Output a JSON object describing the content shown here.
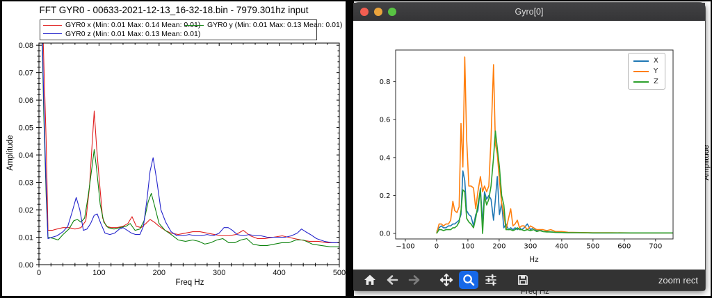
{
  "left_panel": {
    "title": "FFT GYR0 - 00633-2021-12-13_16-32-18.bin - 7979.301hz input"
  },
  "window": {
    "title": "Gyro[0]",
    "traffic_lights": {
      "close": "#f25e51",
      "minimize": "#eba43c",
      "zoom": "#58c343"
    },
    "toolbar": {
      "icons": [
        "home",
        "back",
        "forward",
        "pan",
        "zoom",
        "configure-subplots",
        "save"
      ],
      "active_tool": "zoom",
      "active_bg": "#1668e8",
      "status_text": "zoom rect"
    }
  },
  "background_window": {
    "ylabel_fragment": "Amplitude",
    "xlabel_fragment": "Freq Hz"
  },
  "chart_data": [
    {
      "type": "line",
      "title": "FFT GYR0 - 00633-2021-12-13_16-32-18.bin - 7979.301hz input",
      "xlabel": "Freq Hz",
      "ylabel": "Amplitude",
      "xlim": [
        0,
        500
      ],
      "ylim": [
        0,
        0.0808
      ],
      "xticks": [
        0,
        100,
        200,
        300,
        400,
        500
      ],
      "xticklabels": [
        "0",
        "100",
        "200",
        "300",
        "400",
        "500"
      ],
      "xminor_step": 20,
      "yticks": [
        0,
        0.01,
        0.02,
        0.03,
        0.04,
        0.05,
        0.06,
        0.07,
        0.08
      ],
      "yticklabels": [
        "0.00",
        "0.01",
        "0.02",
        "0.03",
        "0.04",
        "0.05",
        "0.06",
        "0.07",
        "0.08"
      ],
      "yminor_step": 0.002,
      "grid": false,
      "legend_position": "top spanning, two columns",
      "series": [
        {
          "name": "GYR0 x",
          "legend_label": "GYR0 x (Min: 0.01 Max: 0.14 Mean: 0.01)",
          "color": "#e01f1f",
          "x": [
            0,
            4,
            8,
            12,
            15,
            22,
            30,
            40,
            50,
            60,
            70,
            78,
            84,
            88,
            92,
            96,
            100,
            106,
            112,
            120,
            130,
            140,
            148,
            155,
            162,
            170,
            178,
            185,
            192,
            200,
            210,
            220,
            232,
            244,
            256,
            268,
            280,
            292,
            304,
            316,
            328,
            340,
            352,
            364,
            376,
            390,
            405,
            415,
            425,
            437,
            450,
            465,
            480,
            500
          ],
          "y": [
            0.14,
            0.105,
            0.075,
            0.045,
            0.0125,
            0.0125,
            0.013,
            0.0135,
            0.0135,
            0.013,
            0.0135,
            0.016,
            0.028,
            0.042,
            0.056,
            0.043,
            0.032,
            0.017,
            0.014,
            0.0135,
            0.0135,
            0.014,
            0.015,
            0.0175,
            0.014,
            0.0135,
            0.015,
            0.0165,
            0.0155,
            0.014,
            0.0125,
            0.0115,
            0.011,
            0.0115,
            0.012,
            0.012,
            0.0115,
            0.011,
            0.0105,
            0.0105,
            0.011,
            0.0125,
            0.0105,
            0.0095,
            0.0095,
            0.01,
            0.0105,
            0.01,
            0.0095,
            0.009,
            0.0085,
            0.0085,
            0.008,
            0.008
          ]
        },
        {
          "name": "GYR0 y",
          "legend_label": "GYR0 y (Min: 0.01 Max: 0.13 Mean: 0.01)",
          "color": "#0e830e",
          "x": [
            0,
            4,
            8,
            12,
            15,
            25,
            32,
            40,
            50,
            58,
            64,
            70,
            76,
            82,
            88,
            92,
            96,
            102,
            108,
            115,
            125,
            135,
            145,
            152,
            160,
            168,
            175,
            182,
            187,
            193,
            200,
            210,
            220,
            232,
            244,
            256,
            266,
            276,
            286,
            296,
            306,
            316,
            326,
            336,
            346,
            356,
            368,
            380,
            392,
            404,
            416,
            428,
            440,
            455,
            470,
            485,
            500
          ],
          "y": [
            0.13,
            0.095,
            0.055,
            0.025,
            0.01,
            0.0095,
            0.009,
            0.011,
            0.013,
            0.016,
            0.0165,
            0.0155,
            0.017,
            0.025,
            0.035,
            0.042,
            0.035,
            0.022,
            0.0155,
            0.0135,
            0.013,
            0.0135,
            0.014,
            0.015,
            0.0125,
            0.013,
            0.016,
            0.023,
            0.026,
            0.021,
            0.015,
            0.0125,
            0.011,
            0.009,
            0.0085,
            0.009,
            0.0085,
            0.0075,
            0.008,
            0.009,
            0.0095,
            0.008,
            0.008,
            0.009,
            0.0095,
            0.0075,
            0.007,
            0.007,
            0.0075,
            0.008,
            0.008,
            0.009,
            0.009,
            0.0075,
            0.007,
            0.0065,
            0.0065
          ]
        },
        {
          "name": "GYR0 z",
          "legend_label": "GYR0 z (Min: 0.01 Max: 0.13 Mean: 0.01)",
          "color": "#2525cc",
          "x": [
            0,
            4,
            8,
            12,
            15,
            22,
            30,
            40,
            48,
            55,
            62,
            68,
            74,
            80,
            86,
            92,
            97,
            103,
            110,
            118,
            126,
            134,
            140,
            147,
            154,
            161,
            168,
            174,
            180,
            185,
            190,
            196,
            203,
            211,
            220,
            230,
            240,
            250,
            260,
            270,
            280,
            290,
            300,
            308,
            315,
            322,
            330,
            340,
            350,
            360,
            370,
            380,
            390,
            400,
            410,
            420,
            430,
            437,
            444,
            452,
            462,
            475,
            488,
            500
          ],
          "y": [
            0.13,
            0.1,
            0.06,
            0.028,
            0.0095,
            0.01,
            0.0105,
            0.012,
            0.014,
            0.019,
            0.0245,
            0.02,
            0.0125,
            0.013,
            0.015,
            0.018,
            0.0185,
            0.015,
            0.0115,
            0.011,
            0.0115,
            0.013,
            0.0135,
            0.0125,
            0.0115,
            0.011,
            0.011,
            0.014,
            0.024,
            0.034,
            0.039,
            0.031,
            0.02,
            0.0155,
            0.012,
            0.0105,
            0.0105,
            0.011,
            0.0105,
            0.0105,
            0.011,
            0.0105,
            0.0115,
            0.0135,
            0.0135,
            0.0125,
            0.011,
            0.0105,
            0.011,
            0.0105,
            0.0105,
            0.01,
            0.01,
            0.01,
            0.01,
            0.0105,
            0.0115,
            0.013,
            0.012,
            0.011,
            0.0095,
            0.0085,
            0.008,
            0.008
          ]
        }
      ]
    },
    {
      "type": "line",
      "title": "Gyro[0]",
      "xlabel": "Hz",
      "ylabel": "",
      "xlim": [
        -131,
        756
      ],
      "ylim": [
        -0.029,
        0.967
      ],
      "xticks": [
        -100,
        0,
        100,
        200,
        300,
        400,
        500,
        600,
        700
      ],
      "xticklabels": [
        "−100",
        "0",
        "100",
        "200",
        "300",
        "400",
        "500",
        "600",
        "700"
      ],
      "yticks": [
        0,
        0.2,
        0.4,
        0.6,
        0.8
      ],
      "yticklabels": [
        "0.0",
        "0.2",
        "0.4",
        "0.6",
        "0.8"
      ],
      "grid": false,
      "legend_position": "upper right",
      "x": [
        0,
        8,
        15,
        22,
        30,
        38,
        45,
        52,
        58,
        65,
        72,
        78,
        84,
        90,
        96,
        103,
        110,
        118,
        125,
        132,
        140,
        147,
        153,
        160,
        167,
        174,
        182,
        188,
        194,
        201,
        208,
        215,
        222,
        230,
        237,
        244,
        251,
        258,
        265,
        272,
        280,
        290,
        300,
        310,
        320,
        330,
        340,
        352,
        365,
        380,
        400,
        420,
        450,
        500,
        560,
        620,
        680,
        755
      ],
      "series": [
        {
          "name": "X",
          "color": "#1f77b4",
          "y": [
            0.01,
            0.03,
            0.04,
            0.03,
            0.03,
            0.04,
            0.04,
            0.05,
            0.05,
            0.06,
            0.07,
            0.1,
            0.33,
            0.28,
            0.12,
            0.1,
            0.09,
            0.04,
            0.1,
            0.12,
            0.24,
            0.05,
            0.22,
            0.18,
            0.2,
            0.18,
            0.07,
            0.18,
            0.3,
            0.1,
            0.16,
            0.03,
            0.05,
            0.02,
            0.03,
            0.02,
            0.03,
            0.02,
            0.03,
            0.02,
            0.03,
            0.05,
            0.02,
            0.03,
            0.015,
            0.02,
            0.01,
            0.01,
            0.008,
            0.006,
            0.005,
            0.004,
            0.004,
            0.003,
            0.003,
            0.003,
            0.003,
            0.003
          ]
        },
        {
          "name": "Y",
          "color": "#ff7f0e",
          "y": [
            0.0,
            0.05,
            0.05,
            0.04,
            0.05,
            0.05,
            0.07,
            0.17,
            0.12,
            0.11,
            0.14,
            0.58,
            0.35,
            0.93,
            0.5,
            0.25,
            0.25,
            0.24,
            0.13,
            0.22,
            0.3,
            0.22,
            0.25,
            0.22,
            0.25,
            0.5,
            0.89,
            0.47,
            0.42,
            0.28,
            0.16,
            0.1,
            0.02,
            0.08,
            0.13,
            0.04,
            0.05,
            0.07,
            0.03,
            0.04,
            0.04,
            0.02,
            0.04,
            0.03,
            0.02,
            0.02,
            0.02,
            0.015,
            0.02,
            0.01,
            0.01,
            0.006,
            0.005,
            0.004,
            0.004,
            0.003,
            0.003,
            0.003
          ]
        },
        {
          "name": "Z",
          "color": "#2ca02c",
          "y": [
            0.0,
            0.02,
            0.02,
            0.015,
            0.02,
            0.02,
            0.02,
            0.03,
            0.03,
            0.04,
            0.06,
            0.12,
            0.23,
            0.22,
            0.08,
            0.06,
            0.05,
            0.03,
            0.08,
            0.15,
            0.23,
            0.0,
            0.2,
            0.15,
            0.18,
            0.25,
            0.4,
            0.54,
            0.45,
            0.35,
            0.2,
            0.15,
            0.02,
            0.02,
            0.02,
            0.015,
            0.02,
            0.03,
            0.02,
            0.02,
            0.015,
            0.02,
            0.015,
            0.02,
            0.01,
            0.015,
            0.01,
            0.008,
            0.008,
            0.006,
            0.005,
            0.004,
            0.004,
            0.003,
            0.003,
            0.003,
            0.003,
            0.003
          ]
        }
      ]
    }
  ]
}
